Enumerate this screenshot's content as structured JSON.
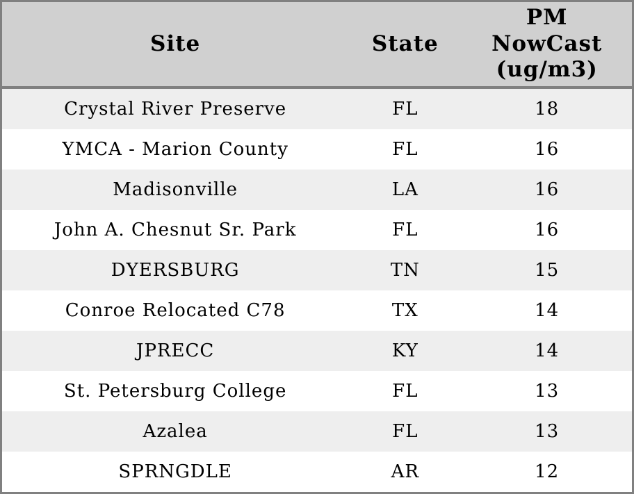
{
  "chart_data": {
    "type": "table",
    "title": "",
    "columns": [
      "Site",
      "State",
      "PM NowCast (ug/m3)"
    ],
    "column_display": [
      "Site",
      "State",
      "PM\nNowCast\n(ug/m3)"
    ],
    "rows": [
      [
        "Crystal River Preserve",
        "FL",
        "18"
      ],
      [
        "YMCA - Marion County",
        "FL",
        "16"
      ],
      [
        "Madisonville",
        "LA",
        "16"
      ],
      [
        "John A. Chesnut Sr. Park",
        "FL",
        "16"
      ],
      [
        "DYERSBURG",
        "TN",
        "15"
      ],
      [
        "Conroe Relocated C78",
        "TX",
        "14"
      ],
      [
        "JPRECC",
        "KY",
        "14"
      ],
      [
        "St. Petersburg College",
        "FL",
        "13"
      ],
      [
        "Azalea",
        "FL",
        "13"
      ],
      [
        "SPRNGDLE",
        "AR",
        "12"
      ]
    ],
    "layout": {
      "header_bg": "#d0d0d0",
      "row_alt_bg": "#eeeeee",
      "row_bg": "#ffffff",
      "border_color": "#808080",
      "text_color": "#000000",
      "grid": "none"
    }
  }
}
